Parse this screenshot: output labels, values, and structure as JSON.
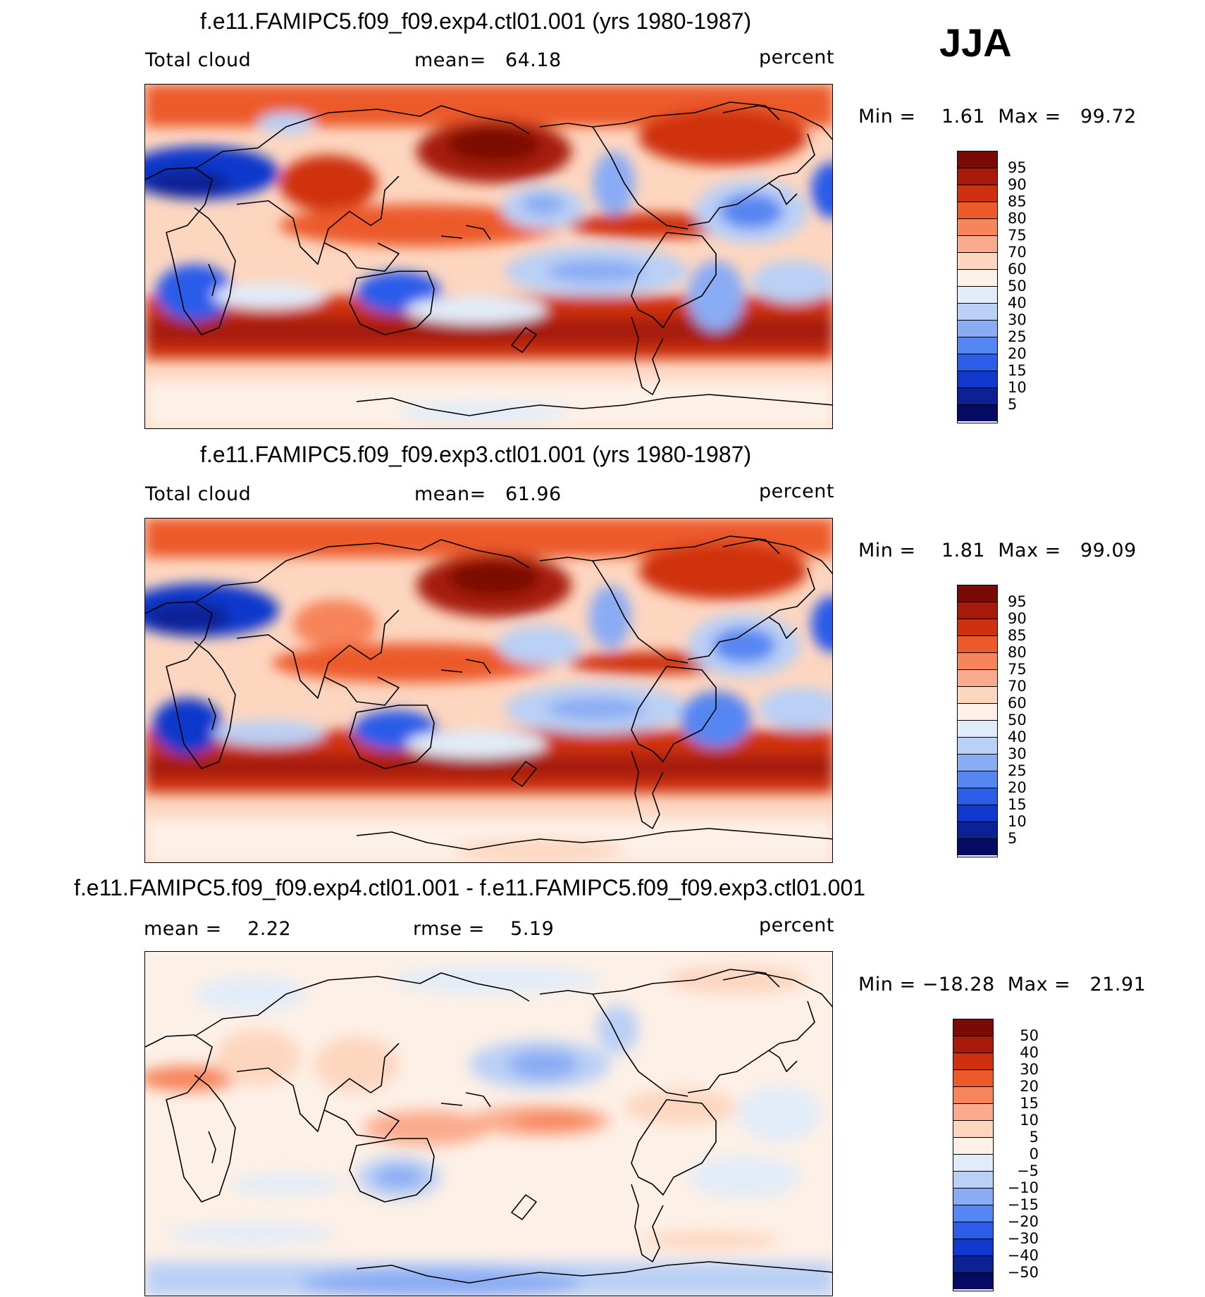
{
  "season": "JJA",
  "panels": [
    {
      "title": "f.e11.FAMIPC5.f09_f09.exp4.ctl01.001 (yrs 1980-1987)",
      "left_label": "Total cloud",
      "center_label": "mean=   64.18",
      "units": "percent",
      "minmax": "Min =    1.61  Max =   99.72",
      "levels": [
        "95",
        "90",
        "85",
        "80",
        "75",
        "70",
        "60",
        "50",
        "40",
        "30",
        "25",
        "20",
        "15",
        "10",
        "5"
      ]
    },
    {
      "title": "f.e11.FAMIPC5.f09_f09.exp3.ctl01.001 (yrs 1980-1987)",
      "left_label": "Total cloud",
      "center_label": "mean=   61.96",
      "units": "percent",
      "minmax": "Min =    1.81  Max =   99.09",
      "levels": [
        "95",
        "90",
        "85",
        "80",
        "75",
        "70",
        "60",
        "50",
        "40",
        "30",
        "25",
        "20",
        "15",
        "10",
        "5"
      ]
    },
    {
      "title": "f.e11.FAMIPC5.f09_f09.exp4.ctl01.001 - f.e11.FAMIPC5.f09_f09.exp3.ctl01.001",
      "left_label": "mean =    2.22",
      "center_label": "rmse =    5.19",
      "units": "percent",
      "minmax": "Min = −18.28  Max =   21.91",
      "levels": [
        "50",
        "40",
        "30",
        "20",
        "15",
        "10",
        "5",
        "0",
        "−5",
        "−10",
        "−15",
        "−20",
        "−30",
        "−40",
        "−50"
      ]
    }
  ],
  "colors": {
    "scale": [
      "#7a0a06",
      "#a71a0a",
      "#cf300f",
      "#ec5a2a",
      "#f7845a",
      "#fbab8d",
      "#fdd6c0",
      "#fdf0e6",
      "#e2ecf8",
      "#bad0f5",
      "#8aacf4",
      "#5686f2",
      "#2c5cea",
      "#1138cc",
      "#0d2196",
      "#050a62"
    ]
  }
}
